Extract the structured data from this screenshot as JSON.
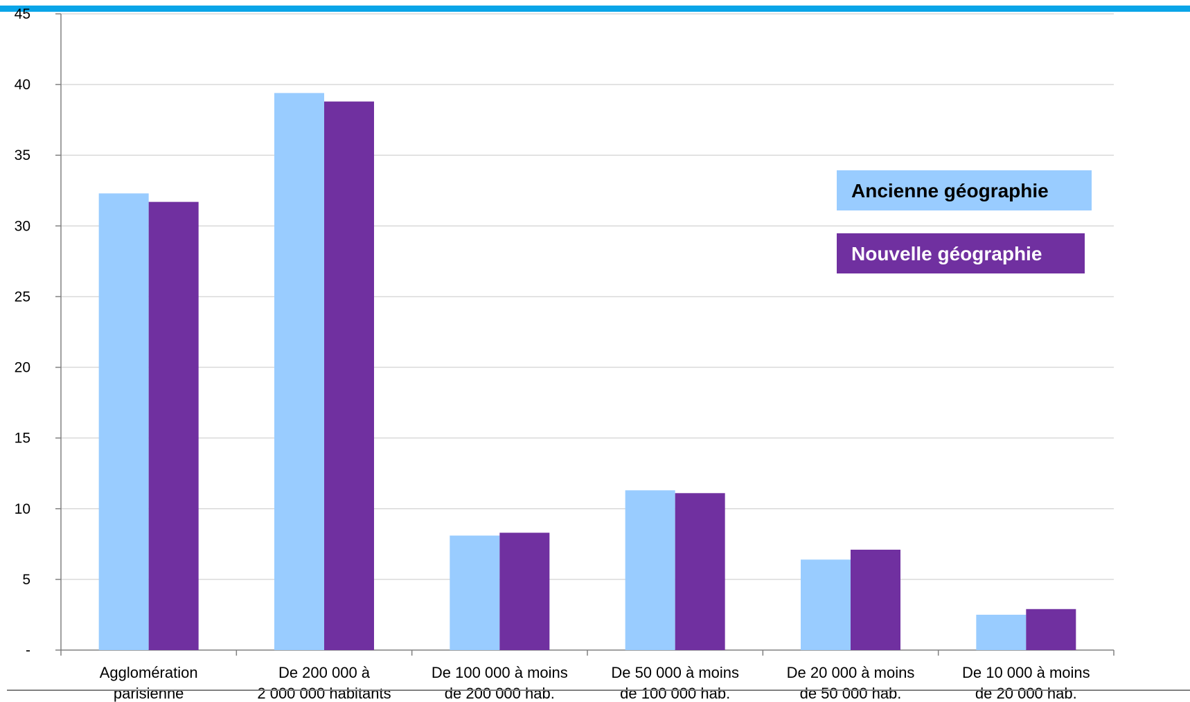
{
  "chart_data": {
    "type": "bar",
    "categories": [
      [
        "Agglomération",
        "parisienne"
      ],
      [
        "De 200 000 à",
        "2 000 000 habitants"
      ],
      [
        "De 100 000 à moins",
        "de 200 000 hab."
      ],
      [
        "De 50 000 à moins",
        "de 100 000 hab."
      ],
      [
        "De 20 000 à moins",
        "de 50 000 hab."
      ],
      [
        "De 10 000 à moins",
        "de 20 000 hab."
      ]
    ],
    "series": [
      {
        "name": "Ancienne géographie",
        "color": "#99ccff",
        "text_color": "#000000",
        "values": [
          32.3,
          39.4,
          8.1,
          11.3,
          6.4,
          2.5
        ]
      },
      {
        "name": "Nouvelle géographie",
        "color": "#7030a0",
        "text_color": "#ffffff",
        "values": [
          31.7,
          38.8,
          8.3,
          11.1,
          7.1,
          2.9
        ]
      }
    ],
    "ylim": [
      0,
      45
    ],
    "yticks": [
      {
        "value": 0,
        "label": "-"
      },
      {
        "value": 5,
        "label": "5"
      },
      {
        "value": 10,
        "label": "10"
      },
      {
        "value": 15,
        "label": "15"
      },
      {
        "value": 20,
        "label": "20"
      },
      {
        "value": 25,
        "label": "25"
      },
      {
        "value": 30,
        "label": "30"
      },
      {
        "value": 35,
        "label": "35"
      },
      {
        "value": 40,
        "label": "40"
      },
      {
        "value": 45,
        "label": "45"
      }
    ],
    "grid": true,
    "legend_position": "upper-right",
    "title": "",
    "xlabel": "",
    "ylabel": ""
  },
  "colors": {
    "top_band": "#0aa5e8",
    "gridline": "#d9d9d9",
    "axis": "#808080"
  }
}
